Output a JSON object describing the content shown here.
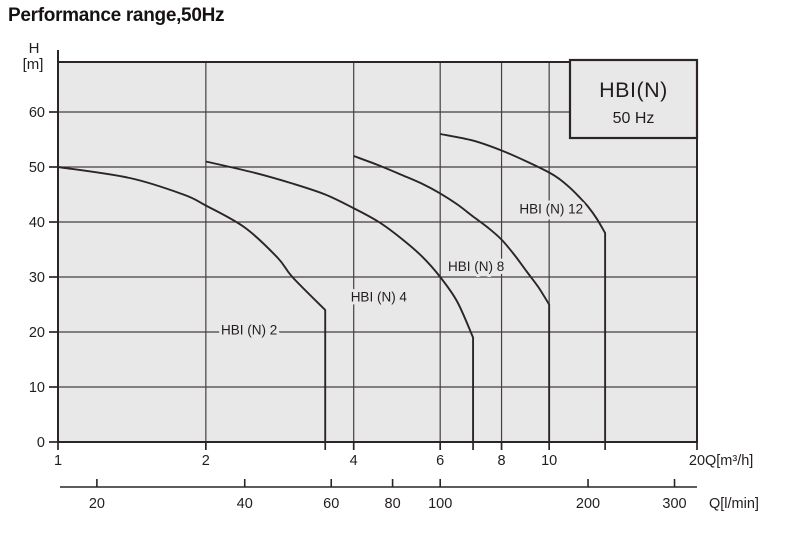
{
  "title": "Performance range,50Hz",
  "colors": {
    "plot_background": "#e9e8e8",
    "page_background": "#ffffff",
    "line_ink": "#2b2526",
    "grid_ink": "#453f40"
  },
  "legend": {
    "title": "HBI(N)",
    "subtitle": "50 Hz",
    "position": "top-right"
  },
  "chart_data": {
    "type": "line",
    "title": "Performance range,50Hz",
    "x_axis": {
      "label": "Q[m³/h]",
      "scale": "log",
      "min": 1,
      "max": 20,
      "ticks": [
        1,
        2,
        4,
        6,
        8,
        10,
        20
      ],
      "unlabeled_ticks": [
        3.5,
        7,
        13
      ]
    },
    "x_axis_secondary": {
      "label": "Q[l/min]",
      "scale": "log",
      "ticks": [
        20,
        40,
        60,
        80,
        100,
        200,
        300
      ],
      "conversion_l_min_per_m3_h": 16.6667
    },
    "y_axis": {
      "label_line1": "H",
      "label_line2": "[m]",
      "min": 0,
      "max": 69,
      "ticks": [
        0,
        10,
        20,
        30,
        40,
        50,
        60
      ]
    },
    "grid": true,
    "legend": {
      "title": "HBI(N)",
      "subtitle": "50 Hz"
    },
    "series": [
      {
        "name": "HBI (N) 2",
        "max_q": 3.5,
        "drop_to_zero": true,
        "label_pos": [
          2.45,
          20.5
        ],
        "points": [
          [
            1,
            50
          ],
          [
            1.4,
            48
          ],
          [
            1.8,
            45
          ],
          [
            2,
            43
          ],
          [
            2.4,
            39
          ],
          [
            2.8,
            33.5
          ],
          [
            3,
            30
          ],
          [
            3.5,
            24
          ]
        ]
      },
      {
        "name": "HBI (N) 4",
        "max_q": 7,
        "drop_to_zero": true,
        "label_pos": [
          4.5,
          26.5
        ],
        "points": [
          [
            2,
            51
          ],
          [
            2.5,
            49
          ],
          [
            3,
            47
          ],
          [
            3.5,
            45
          ],
          [
            4,
            42.5
          ],
          [
            4.5,
            40
          ],
          [
            5,
            37
          ],
          [
            5.5,
            33.8
          ],
          [
            6,
            30
          ],
          [
            6.5,
            25.5
          ],
          [
            7,
            19
          ]
        ]
      },
      {
        "name": "HBI (N) 8",
        "max_q": 10,
        "drop_to_zero": true,
        "label_pos": [
          7.1,
          32
        ],
        "points": [
          [
            4,
            52
          ],
          [
            4.5,
            50.3
          ],
          [
            5,
            48.6
          ],
          [
            5.5,
            47
          ],
          [
            6,
            45.2
          ],
          [
            6.5,
            43.2
          ],
          [
            7,
            41
          ],
          [
            7.5,
            39
          ],
          [
            8,
            36.8
          ],
          [
            8.5,
            34
          ],
          [
            9,
            31
          ],
          [
            9.5,
            28.2
          ],
          [
            10,
            25
          ]
        ]
      },
      {
        "name": "HBI (N) 12",
        "max_q": 13,
        "drop_to_zero": true,
        "label_pos": [
          10.1,
          42.5
        ],
        "points": [
          [
            6,
            56
          ],
          [
            7,
            54.8
          ],
          [
            8,
            53
          ],
          [
            9,
            51
          ],
          [
            10,
            49
          ],
          [
            10.5,
            47.8
          ],
          [
            11,
            46.3
          ],
          [
            11.5,
            44.6
          ],
          [
            12,
            42.8
          ],
          [
            12.5,
            40.6
          ],
          [
            13,
            38
          ]
        ]
      }
    ]
  }
}
